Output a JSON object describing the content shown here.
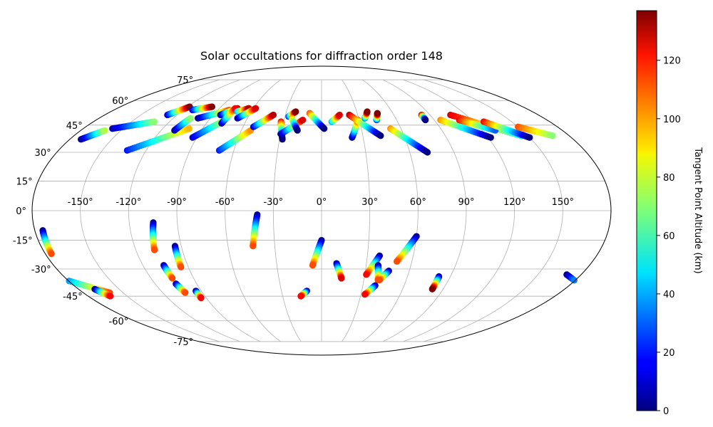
{
  "chart_data": {
    "type": "scatter",
    "projection": "mollweide",
    "title": "Solar occultations for diffraction order 148",
    "lon_ticks": [
      -150,
      -120,
      -90,
      -60,
      -30,
      0,
      30,
      60,
      90,
      120,
      150
    ],
    "lon_tick_labels": [
      "-150°",
      "-120°",
      "-90°",
      "-60°",
      "-30°",
      "0°",
      "30°",
      "60°",
      "90°",
      "120°",
      "150°"
    ],
    "lat_ticks": [
      75,
      60,
      45,
      30,
      15,
      0,
      -15,
      -30,
      -45,
      -60,
      -75
    ],
    "lat_tick_labels": [
      "75°",
      "60°",
      "45°",
      "30°",
      "15°",
      "0°",
      "-15°",
      "-30°",
      "-45°",
      "-60°",
      "-75°"
    ],
    "grid": true,
    "colorbar": {
      "label": "Tangent Point Altitude (km)",
      "colormap": "jet",
      "range": [
        0,
        137
      ],
      "ticks": [
        0,
        20,
        40,
        60,
        80,
        100,
        120
      ],
      "tick_labels": [
        "0",
        "20",
        "40",
        "60",
        "80",
        "100",
        "120"
      ]
    },
    "point_series": [
      {
        "lon0": -172,
        "lat0": 37,
        "lon1": -162,
        "lat1": 42,
        "alt0": 0,
        "alt1": 75
      },
      {
        "lon0": -158,
        "lat0": 43,
        "lon1": -132,
        "lat1": 47,
        "alt0": 5,
        "alt1": 70
      },
      {
        "lon0": -128,
        "lat0": 51,
        "lon1": -118,
        "lat1": 56,
        "alt0": 10,
        "alt1": 137
      },
      {
        "lon0": -133,
        "lat0": 31,
        "lon1": -100,
        "lat1": 43,
        "alt0": 20,
        "alt1": 95
      },
      {
        "lon0": -110,
        "lat0": 42,
        "lon1": -106,
        "lat1": 49,
        "alt0": 0,
        "alt1": 70
      },
      {
        "lon0": -112,
        "lat0": 54,
        "lon1": -98,
        "lat1": 56,
        "alt0": 10,
        "alt1": 137
      },
      {
        "lon0": -100,
        "lat0": 49,
        "lon1": -80,
        "lat1": 54,
        "alt0": 0,
        "alt1": 110
      },
      {
        "lon0": -93,
        "lat0": 38,
        "lon1": -77,
        "lat1": 48,
        "alt0": 10,
        "alt1": 80
      },
      {
        "lon0": -84,
        "lat0": 51,
        "lon1": -74,
        "lat1": 55,
        "alt0": 0,
        "alt1": 130
      },
      {
        "lon0": -78,
        "lat0": 46,
        "lon1": -76,
        "lat1": 55,
        "alt0": 0,
        "alt1": 120
      },
      {
        "lon0": -72,
        "lat0": 53,
        "lon1": -64,
        "lat1": 55,
        "alt0": 40,
        "alt1": 130
      },
      {
        "lon0": -68,
        "lat0": 49,
        "lon1": -58,
        "lat1": 55,
        "alt0": 0,
        "alt1": 125
      },
      {
        "lon0": -70,
        "lat0": 31,
        "lon1": -53,
        "lat1": 42,
        "alt0": 20,
        "alt1": 100
      },
      {
        "lon0": -52,
        "lat0": 44,
        "lon1": -40,
        "lat1": 51,
        "alt0": 10,
        "alt1": 130
      },
      {
        "lon0": -32,
        "lat0": 47,
        "lon1": -28,
        "lat1": 37,
        "alt0": 120,
        "alt1": 0
      },
      {
        "lon0": -30,
        "lat0": 40,
        "lon1": -15,
        "lat1": 48,
        "alt0": 0,
        "alt1": 125
      },
      {
        "lon0": -27,
        "lat0": 50,
        "lon1": -22,
        "lat1": 53,
        "alt0": 20,
        "alt1": 137
      },
      {
        "lon0": -24,
        "lat0": 49,
        "lon1": -18,
        "lat1": 42,
        "alt0": 100,
        "alt1": 0
      },
      {
        "lon0": -10,
        "lat0": 52,
        "lon1": 2,
        "lat1": 43,
        "alt0": 110,
        "alt1": 0
      },
      {
        "lon0": 8,
        "lat0": 47,
        "lon1": 15,
        "lat1": 51,
        "alt0": 40,
        "alt1": 125
      },
      {
        "lon0": 22,
        "lat0": 38,
        "lon1": 29,
        "lat1": 48,
        "alt0": 0,
        "alt1": 110
      },
      {
        "lon0": 23,
        "lat0": 51,
        "lon1": 43,
        "lat1": 39,
        "alt0": 130,
        "alt1": 0
      },
      {
        "lon0": 35,
        "lat0": 49,
        "lon1": 39,
        "lat1": 53,
        "alt0": 30,
        "alt1": 137
      },
      {
        "lon0": 44,
        "lat0": 48,
        "lon1": 47,
        "lat1": 52,
        "alt0": 20,
        "alt1": 137
      },
      {
        "lon0": 52,
        "lat0": 43,
        "lon1": 72,
        "lat1": 30,
        "alt0": 100,
        "alt1": 0
      },
      {
        "lon0": 83,
        "lat0": 51,
        "lon1": 83,
        "lat1": 48,
        "alt0": 130,
        "alt1": 0
      },
      {
        "lon0": 95,
        "lat0": 48,
        "lon1": 122,
        "lat1": 38,
        "alt0": 100,
        "alt1": 0
      },
      {
        "lon0": 107,
        "lat0": 51,
        "lon1": 145,
        "lat1": 39,
        "alt0": 125,
        "alt1": 50
      },
      {
        "lon0": 110,
        "lat0": 48,
        "lon1": 130,
        "lat1": 42,
        "alt0": 120,
        "alt1": 30
      },
      {
        "lon0": 128,
        "lat0": 47,
        "lon1": 150,
        "lat1": 38,
        "alt0": 120,
        "alt1": 0
      },
      {
        "lon0": 150,
        "lat0": 44,
        "lon1": 168,
        "lat1": 39,
        "alt0": 110,
        "alt1": 70
      },
      {
        "lon0": -175,
        "lat0": -10,
        "lon1": -176,
        "lat1": -22,
        "alt0": 0,
        "alt1": 110
      },
      {
        "lon0": -190,
        "lat0": -33,
        "lon1": -160,
        "lat1": -43,
        "alt0": 0,
        "alt1": 110
      },
      {
        "lon0": -168,
        "lat0": -41,
        "lon1": -163,
        "lat1": -45,
        "alt0": 0,
        "alt1": 120
      },
      {
        "lon0": -105,
        "lat0": -6,
        "lon1": -108,
        "lat1": -20,
        "alt0": 0,
        "alt1": 110
      },
      {
        "lon0": -106,
        "lat0": -28,
        "lon1": -105,
        "lat1": -35,
        "alt0": 0,
        "alt1": 110
      },
      {
        "lon0": -105,
        "lat0": -38,
        "lon1": -103,
        "lat1": -43,
        "alt0": 0,
        "alt1": 110
      },
      {
        "lon0": -94,
        "lat0": -18,
        "lon1": -95,
        "lat1": -29,
        "alt0": 0,
        "alt1": 110
      },
      {
        "lon0": -94,
        "lat0": -42,
        "lon1": -94,
        "lat1": -46,
        "alt0": 0,
        "alt1": 120
      },
      {
        "lon0": -40,
        "lat0": -2,
        "lon1": -44,
        "lat1": -18,
        "alt0": 0,
        "alt1": 110
      },
      {
        "lon0": 0,
        "lat0": -15,
        "lon1": -6,
        "lat1": -28,
        "alt0": 0,
        "alt1": 110
      },
      {
        "lon0": -11,
        "lat0": -42,
        "lon1": -16,
        "lat1": -45,
        "alt0": 0,
        "alt1": 120
      },
      {
        "lon0": 10,
        "lat0": -27,
        "lon1": 14,
        "lat1": -35,
        "alt0": 0,
        "alt1": 125
      },
      {
        "lon0": 38,
        "lat0": -23,
        "lon1": 31,
        "lat1": -33,
        "alt0": 0,
        "alt1": 120
      },
      {
        "lon0": 38,
        "lat0": -28,
        "lon1": 40,
        "lat1": -36,
        "alt0": 0,
        "alt1": 110
      },
      {
        "lon0": 46,
        "lat0": -31,
        "lon1": 41,
        "lat1": -36,
        "alt0": 0,
        "alt1": 110
      },
      {
        "lon0": 39,
        "lat0": -39,
        "lon1": 33,
        "lat1": -44,
        "alt0": 0,
        "alt1": 120
      },
      {
        "lon0": 60,
        "lat0": -13,
        "lon1": 50,
        "lat1": -26,
        "alt0": 0,
        "alt1": 110
      },
      {
        "lon0": 82,
        "lat0": -34,
        "lon1": 82,
        "lat1": -41,
        "alt0": 0,
        "alt1": 137
      }
    ]
  }
}
